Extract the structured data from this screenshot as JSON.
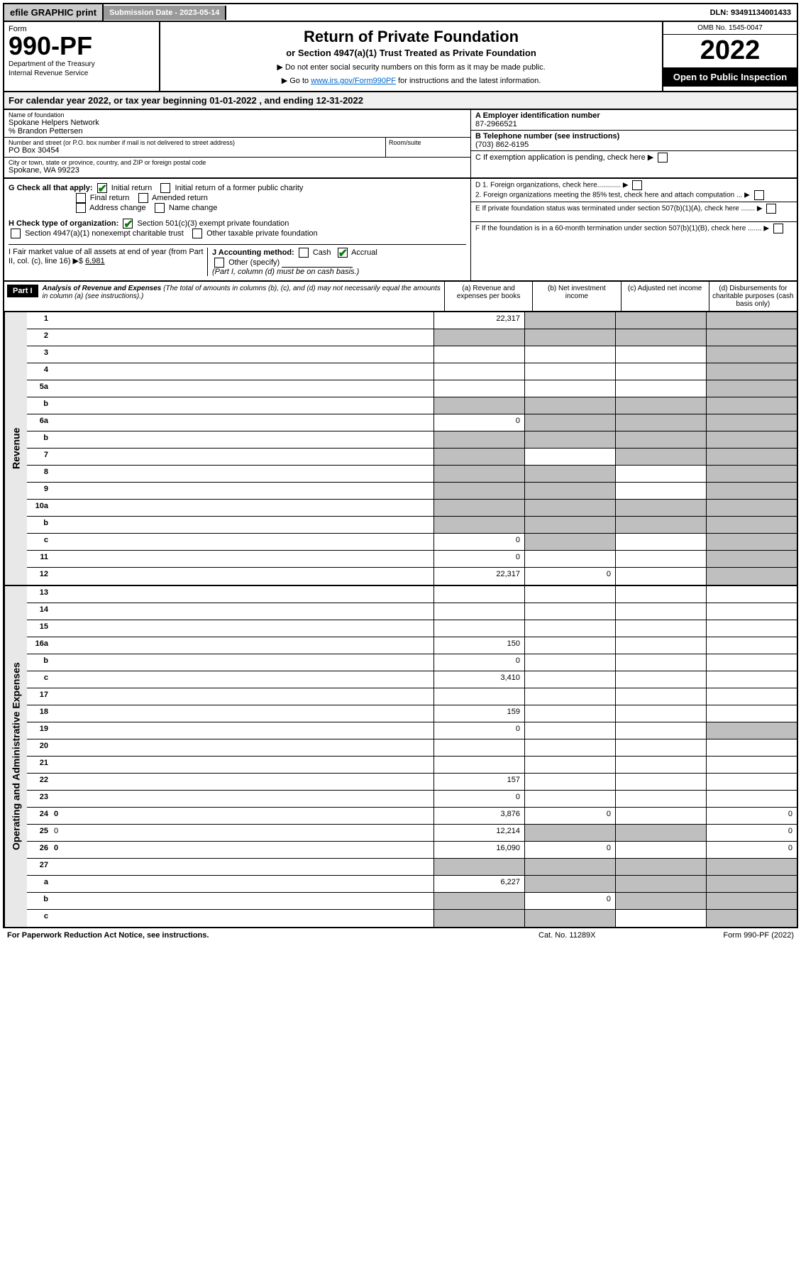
{
  "topbar": {
    "efile": "efile GRAPHIC print",
    "submission": "Submission Date - 2023-05-14",
    "dln": "DLN: 93491134001433"
  },
  "header": {
    "form_label": "Form",
    "form_num": "990-PF",
    "dept1": "Department of the Treasury",
    "dept2": "Internal Revenue Service",
    "title": "Return of Private Foundation",
    "subtitle": "or Section 4947(a)(1) Trust Treated as Private Foundation",
    "instr1": "▶ Do not enter social security numbers on this form as it may be made public.",
    "instr2_pre": "▶ Go to ",
    "instr2_link": "www.irs.gov/Form990PF",
    "instr2_post": " for instructions and the latest information.",
    "omb": "OMB No. 1545-0047",
    "year": "2022",
    "open": "Open to Public Inspection"
  },
  "cal_year": "For calendar year 2022, or tax year beginning 01-01-2022              , and ending 12-31-2022",
  "info": {
    "name_label": "Name of foundation",
    "name": "Spokane Helpers Network",
    "care_of": "% Brandon Pettersen",
    "addr_label": "Number and street (or P.O. box number if mail is not delivered to street address)",
    "addr": "PO Box 30454",
    "room_label": "Room/suite",
    "city_label": "City or town, state or province, country, and ZIP or foreign postal code",
    "city": "Spokane, WA  99223",
    "a_label": "A Employer identification number",
    "a_val": "87-2966521",
    "b_label": "B Telephone number (see instructions)",
    "b_val": "(703) 862-6195",
    "c_label": "C If exemption application is pending, check here",
    "d1": "D 1. Foreign organizations, check here............",
    "d2": "2. Foreign organizations meeting the 85% test, check here and attach computation ...",
    "e": "E  If private foundation status was terminated under section 507(b)(1)(A), check here .......",
    "f": "F  If the foundation is in a 60-month termination under section 507(b)(1)(B), check here .......",
    "g_label": "G Check all that apply:",
    "g_opts": [
      "Initial return",
      "Initial return of a former public charity",
      "Final return",
      "Amended return",
      "Address change",
      "Name change"
    ],
    "h_label": "H Check type of organization:",
    "h_opts": [
      "Section 501(c)(3) exempt private foundation",
      "Section 4947(a)(1) nonexempt charitable trust",
      "Other taxable private foundation"
    ],
    "i_label": "I Fair market value of all assets at end of year (from Part II, col. (c), line 16) ▶$ ",
    "i_val": "6,981",
    "j_label": "J Accounting method:",
    "j_opts": [
      "Cash",
      "Accrual",
      "Other (specify)"
    ],
    "j_note": "(Part I, column (d) must be on cash basis.)"
  },
  "part1": {
    "label": "Part I",
    "title": "Analysis of Revenue and Expenses",
    "note": "(The total of amounts in columns (b), (c), and (d) may not necessarily equal the amounts in column (a) (see instructions).)",
    "cols": [
      "(a)  Revenue and expenses per books",
      "(b)  Net investment income",
      "(c)  Adjusted net income",
      "(d)  Disbursements for charitable purposes (cash basis only)"
    ]
  },
  "side_labels": {
    "rev": "Revenue",
    "exp": "Operating and Administrative Expenses"
  },
  "rows_rev": [
    {
      "n": "1",
      "d": "",
      "a": "22,317",
      "b": "",
      "c": "",
      "sb": true,
      "sc": true,
      "sd": true
    },
    {
      "n": "2",
      "d": "",
      "a": "",
      "b": "",
      "c": "",
      "sa": true,
      "sb": true,
      "sc": true,
      "sd": true
    },
    {
      "n": "3",
      "d": "",
      "a": "",
      "b": "",
      "c": "",
      "sd": true
    },
    {
      "n": "4",
      "d": "",
      "a": "",
      "b": "",
      "c": "",
      "sd": true
    },
    {
      "n": "5a",
      "d": "",
      "a": "",
      "b": "",
      "c": "",
      "sd": true
    },
    {
      "n": "b",
      "d": "",
      "a": "",
      "b": "",
      "c": "",
      "sa": true,
      "sb": true,
      "sc": true,
      "sd": true
    },
    {
      "n": "6a",
      "d": "",
      "a": "0",
      "b": "",
      "c": "",
      "sb": true,
      "sc": true,
      "sd": true
    },
    {
      "n": "b",
      "d": "",
      "a": "",
      "b": "",
      "c": "",
      "sa": true,
      "sb": true,
      "sc": true,
      "sd": true
    },
    {
      "n": "7",
      "d": "",
      "a": "",
      "b": "",
      "c": "",
      "sa": true,
      "sc": true,
      "sd": true
    },
    {
      "n": "8",
      "d": "",
      "a": "",
      "b": "",
      "c": "",
      "sa": true,
      "sb": true,
      "sd": true
    },
    {
      "n": "9",
      "d": "",
      "a": "",
      "b": "",
      "c": "",
      "sa": true,
      "sb": true,
      "sd": true
    },
    {
      "n": "10a",
      "d": "",
      "a": "",
      "b": "",
      "c": "",
      "sa": true,
      "sb": true,
      "sc": true,
      "sd": true
    },
    {
      "n": "b",
      "d": "",
      "a": "",
      "b": "",
      "c": "",
      "sa": true,
      "sb": true,
      "sc": true,
      "sd": true
    },
    {
      "n": "c",
      "d": "",
      "a": "0",
      "b": "",
      "c": "",
      "sb": true,
      "sd": true
    },
    {
      "n": "11",
      "d": "",
      "a": "0",
      "b": "",
      "c": "",
      "sd": true
    },
    {
      "n": "12",
      "d": "",
      "a": "22,317",
      "b": "0",
      "c": "",
      "sd": true,
      "bold": true
    }
  ],
  "rows_exp": [
    {
      "n": "13",
      "d": "",
      "a": "",
      "b": "",
      "c": ""
    },
    {
      "n": "14",
      "d": "",
      "a": "",
      "b": "",
      "c": ""
    },
    {
      "n": "15",
      "d": "",
      "a": "",
      "b": "",
      "c": ""
    },
    {
      "n": "16a",
      "d": "",
      "a": "150",
      "b": "",
      "c": ""
    },
    {
      "n": "b",
      "d": "",
      "a": "0",
      "b": "",
      "c": ""
    },
    {
      "n": "c",
      "d": "",
      "a": "3,410",
      "b": "",
      "c": ""
    },
    {
      "n": "17",
      "d": "",
      "a": "",
      "b": "",
      "c": ""
    },
    {
      "n": "18",
      "d": "",
      "a": "159",
      "b": "",
      "c": ""
    },
    {
      "n": "19",
      "d": "",
      "a": "0",
      "b": "",
      "c": "",
      "sd": true
    },
    {
      "n": "20",
      "d": "",
      "a": "",
      "b": "",
      "c": ""
    },
    {
      "n": "21",
      "d": "",
      "a": "",
      "b": "",
      "c": ""
    },
    {
      "n": "22",
      "d": "",
      "a": "157",
      "b": "",
      "c": ""
    },
    {
      "n": "23",
      "d": "",
      "a": "0",
      "b": "",
      "c": ""
    },
    {
      "n": "24",
      "d": "0",
      "a": "3,876",
      "b": "0",
      "c": "",
      "bold": true
    },
    {
      "n": "25",
      "d": "0",
      "a": "12,214",
      "b": "",
      "c": "",
      "sb": true,
      "sc": true
    },
    {
      "n": "26",
      "d": "0",
      "a": "16,090",
      "b": "0",
      "c": "",
      "bold": true
    },
    {
      "n": "27",
      "d": "",
      "a": "",
      "b": "",
      "c": "",
      "sa": true,
      "sb": true,
      "sc": true,
      "sd": true
    },
    {
      "n": "a",
      "d": "",
      "a": "6,227",
      "b": "",
      "c": "",
      "sb": true,
      "sc": true,
      "sd": true,
      "bold": true
    },
    {
      "n": "b",
      "d": "",
      "a": "",
      "b": "0",
      "c": "",
      "sa": true,
      "sc": true,
      "sd": true,
      "bold": true
    },
    {
      "n": "c",
      "d": "",
      "a": "",
      "b": "",
      "c": "",
      "sa": true,
      "sb": true,
      "sd": true,
      "bold": true
    }
  ],
  "footer": {
    "left": "For Paperwork Reduction Act Notice, see instructions.",
    "mid": "Cat. No. 11289X",
    "right": "Form 990-PF (2022)"
  },
  "colors": {
    "border": "#000000",
    "shade": "#bfbfbf",
    "link": "#0066cc",
    "check": "#0a7a0a"
  }
}
